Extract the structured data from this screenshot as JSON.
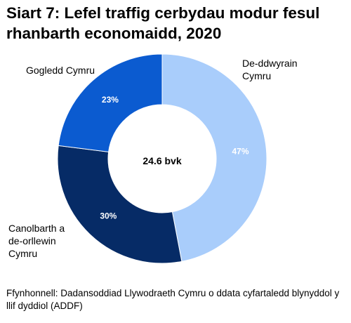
{
  "title": "Siart 7: Lefel traffig cerbydau modur fesul rhanbarth economaidd, 2020",
  "source": "Ffynhonnell: Dadansoddiad Llywodraeth Cymru o ddata cyfartaledd blynyddol y llif dyddiol (ADDF)",
  "chart_data": {
    "type": "pie",
    "donut": true,
    "title": "Siart 7: Lefel traffig cerbydau modur fesul rhanbarth economaidd, 2020",
    "center_label": "24.6 bvk",
    "categories": [
      "De-ddwyrain Cymru",
      "Canolbarth a de-orllewin Cymru",
      "Gogledd Cymru"
    ],
    "values": [
      47,
      30,
      23
    ],
    "value_labels": [
      "47%",
      "30%",
      "23%"
    ],
    "category_label_lines": [
      [
        "De-ddwyrain",
        "Cymru"
      ],
      [
        "Canolbarth a",
        "de-orllewin",
        "Cymru"
      ],
      [
        "Gogledd Cymru"
      ]
    ],
    "colors": [
      "#a9cdfb",
      "#062b66",
      "#0b5bd0"
    ],
    "start_angle_deg": 0,
    "direction": "clockwise"
  }
}
